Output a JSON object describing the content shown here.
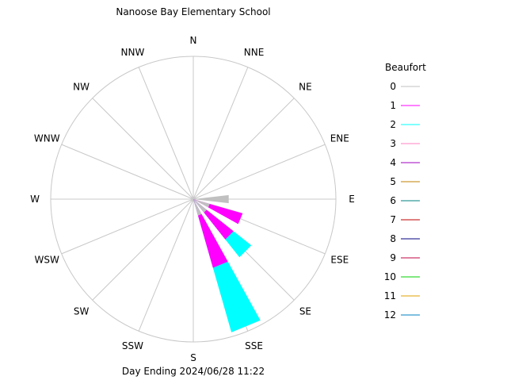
{
  "chart_data": {
    "type": "wind-rose",
    "title": "Nanoose Bay Elementary School",
    "footer": "Day Ending 2024/06/28 11:22",
    "directions": [
      "N",
      "NNE",
      "NE",
      "ENE",
      "E",
      "ESE",
      "SE",
      "SSE",
      "S",
      "SSW",
      "SW",
      "WSW",
      "W",
      "WNW",
      "NW",
      "NNW"
    ],
    "grid": true,
    "legend_position": "right",
    "legend": {
      "title": "Beaufort",
      "items": [
        {
          "label": "0",
          "color": "#c0c0c0"
        },
        {
          "label": "1",
          "color": "#ff00ff"
        },
        {
          "label": "2",
          "color": "#00ffff"
        },
        {
          "label": "3",
          "color": "#ff80c0"
        },
        {
          "label": "4",
          "color": "#a000c0"
        },
        {
          "label": "5",
          "color": "#c08000"
        },
        {
          "label": "6",
          "color": "#008080"
        },
        {
          "label": "7",
          "color": "#c00000"
        },
        {
          "label": "8",
          "color": "#000080"
        },
        {
          "label": "9",
          "color": "#c00040"
        },
        {
          "label": "10",
          "color": "#00d000"
        },
        {
          "label": "11",
          "color": "#e0a000"
        },
        {
          "label": "12",
          "color": "#0080c0"
        }
      ]
    },
    "series": [
      {
        "direction": "E",
        "bands": [
          {
            "beaufort": "0",
            "value": 0.25
          }
        ]
      },
      {
        "direction": "ESE",
        "bands": [
          {
            "beaufort": "0",
            "value": 0.12
          },
          {
            "beaufort": "1",
            "value": 0.36
          }
        ]
      },
      {
        "direction": "SE",
        "bands": [
          {
            "beaufort": "0",
            "value": 0.12
          },
          {
            "beaufort": "1",
            "value": 0.36
          },
          {
            "beaufort": "2",
            "value": 0.52
          }
        ]
      },
      {
        "direction": "SSE",
        "bands": [
          {
            "beaufort": "0",
            "value": 0.12
          },
          {
            "beaufort": "1",
            "value": 0.5
          },
          {
            "beaufort": "2",
            "value": 0.97
          }
        ]
      }
    ]
  }
}
